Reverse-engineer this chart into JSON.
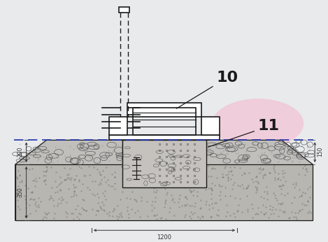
{
  "bg_color": "#e8eaec",
  "line_color": "#1a1a1a",
  "dim_color": "#333333",
  "stone_color": "#c0bfbc",
  "sand_color": "#b8b6b0",
  "box_fill": "#d0ceca",
  "pink_color": "#f2c8d8",
  "label_10": "10",
  "label_11": "11",
  "dim_200": "200",
  "dim_350": "350",
  "dim_1200": "1200",
  "dim_150": "150"
}
